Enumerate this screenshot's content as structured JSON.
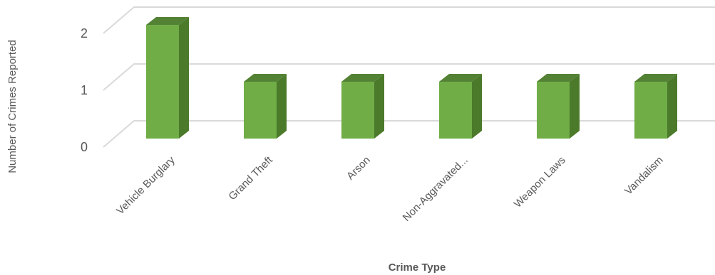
{
  "chart_data": {
    "type": "bar",
    "style": "3d-column",
    "categories": [
      "Vehicle Burglary",
      "Grand Theft",
      "Arson",
      "Non-Aggravated...",
      "Weapon Laws",
      "Vandalism"
    ],
    "values": [
      2,
      1,
      1,
      1,
      1,
      1
    ],
    "title": "",
    "xlabel": "Crime Type",
    "ylabel": "Number of Crimes Reported",
    "ylim": [
      0,
      2
    ],
    "yticks": [
      "0",
      "1",
      "2"
    ],
    "grid": true,
    "legend": "none",
    "colors": {
      "front": "#70ad47",
      "side": "#4b7a2b",
      "top": "#548235",
      "grid": "#d9d9d9",
      "text": "#595959"
    }
  }
}
